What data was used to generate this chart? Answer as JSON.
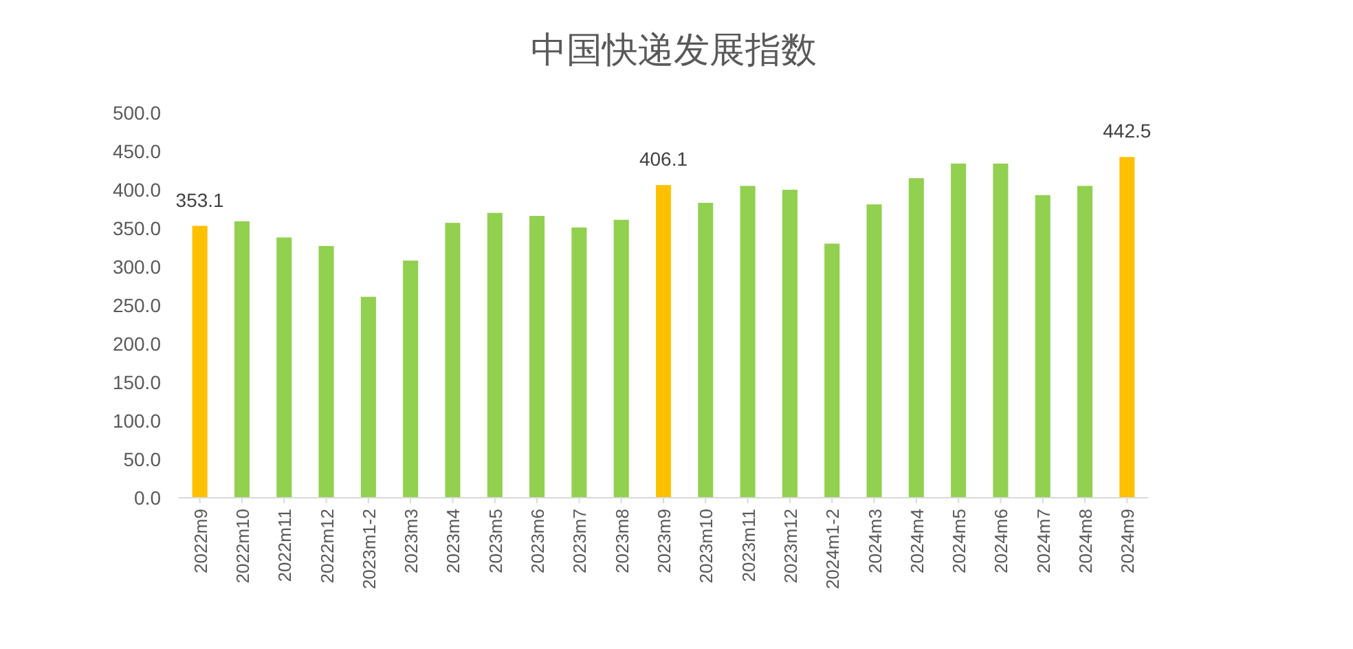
{
  "chart_data": {
    "type": "bar",
    "title": "中国快递发展指数",
    "categories": [
      "2022m9",
      "2022m10",
      "2022m11",
      "2022m12",
      "2023m1-2",
      "2023m3",
      "2023m4",
      "2023m5",
      "2023m6",
      "2023m7",
      "2023m8",
      "2023m9",
      "2023m10",
      "2023m11",
      "2023m12",
      "2024m1-2",
      "2024m3",
      "2024m4",
      "2024m5",
      "2024m6",
      "2024m7",
      "2024m8",
      "2024m9"
    ],
    "values": [
      353.1,
      359,
      338,
      327,
      261,
      308,
      357,
      370,
      366,
      351,
      361,
      406.1,
      383,
      405,
      400,
      330,
      381,
      415,
      434,
      434,
      393,
      405,
      442.5
    ],
    "colors": [
      "#ffc000",
      "#92d050",
      "#92d050",
      "#92d050",
      "#92d050",
      "#92d050",
      "#92d050",
      "#92d050",
      "#92d050",
      "#92d050",
      "#92d050",
      "#ffc000",
      "#92d050",
      "#92d050",
      "#92d050",
      "#92d050",
      "#92d050",
      "#92d050",
      "#92d050",
      "#92d050",
      "#92d050",
      "#92d050",
      "#ffc000"
    ],
    "value_labels": [
      "353.1",
      null,
      null,
      null,
      null,
      null,
      null,
      null,
      null,
      null,
      null,
      "406.1",
      null,
      null,
      null,
      null,
      null,
      null,
      null,
      null,
      null,
      null,
      "442.5"
    ],
    "ylim": [
      0,
      500
    ],
    "yticks": [
      {
        "value": 0,
        "label": "0.0"
      },
      {
        "value": 50,
        "label": "50.0"
      },
      {
        "value": 100,
        "label": "100.0"
      },
      {
        "value": 150,
        "label": "150.0"
      },
      {
        "value": 200,
        "label": "200.0"
      },
      {
        "value": 250,
        "label": "250.0"
      },
      {
        "value": 300,
        "label": "300.0"
      },
      {
        "value": 350,
        "label": "350.0"
      },
      {
        "value": 400,
        "label": "400.0"
      },
      {
        "value": 450,
        "label": "450.0"
      },
      {
        "value": 500,
        "label": "500.0"
      }
    ],
    "grid": false
  }
}
